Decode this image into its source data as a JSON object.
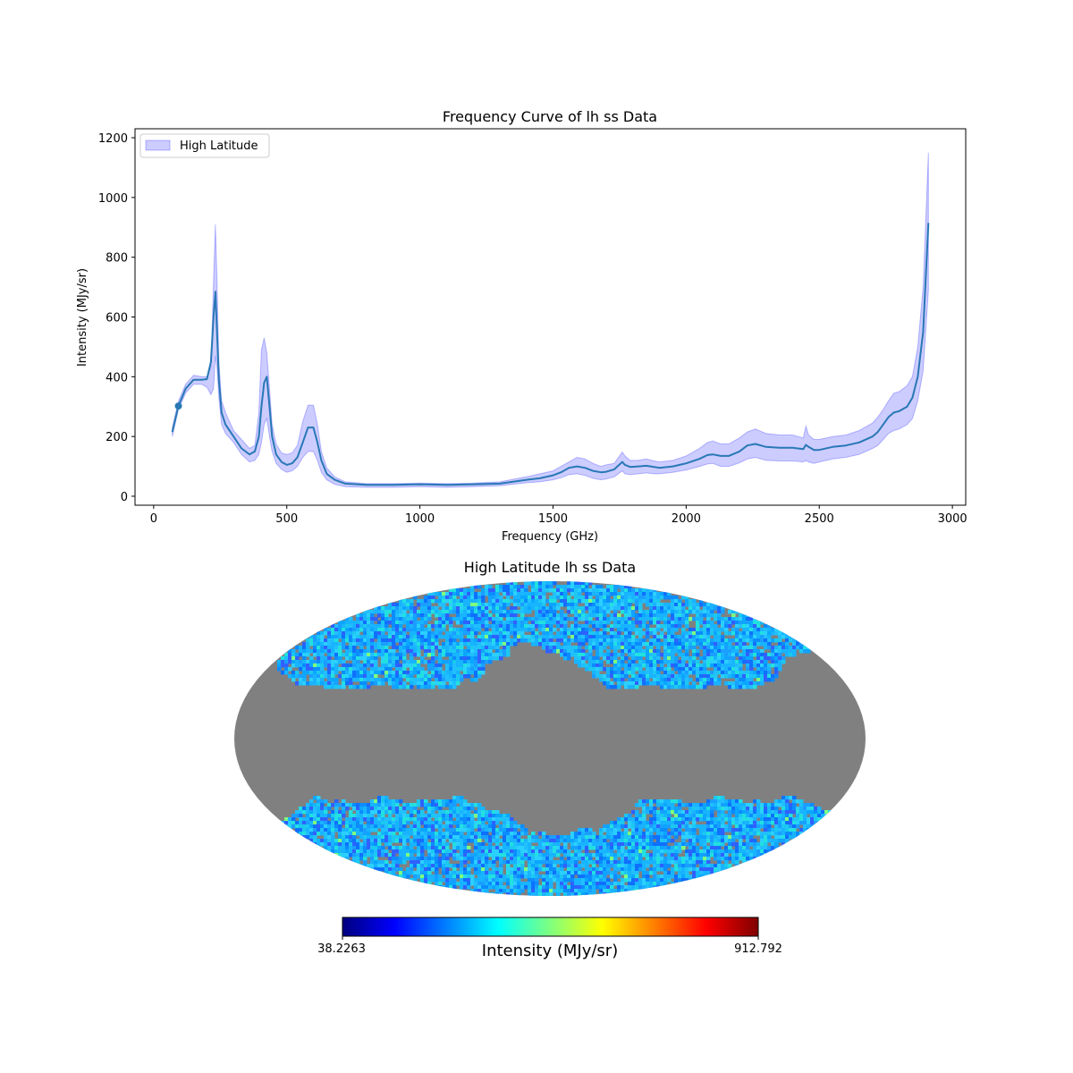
{
  "chart_data": [
    {
      "type": "line",
      "title": "Frequency Curve of lh ss Data",
      "xlabel": "Frequency (GHz)",
      "ylabel": "Intensity (MJy/sr)",
      "xlim": [
        -70,
        3050
      ],
      "ylim": [
        -30,
        1230
      ],
      "xticks": [
        0,
        500,
        1000,
        1500,
        2000,
        2500,
        3000
      ],
      "yticks": [
        0,
        200,
        400,
        600,
        800,
        1000,
        1200
      ],
      "grid": false,
      "legend": {
        "position": "top-left",
        "entries": [
          "High Latitude"
        ]
      },
      "colors": {
        "line": "#2878b5",
        "band": "#0000ff",
        "marker": "#2878b5"
      },
      "highlight_point": {
        "x": 93,
        "y": 302
      },
      "series": [
        {
          "x": [
            70,
            93,
            120,
            150,
            180,
            200,
            215,
            225,
            232,
            238,
            245,
            255,
            270,
            300,
            330,
            360,
            380,
            395,
            405,
            415,
            425,
            435,
            445,
            460,
            480,
            500,
            520,
            540,
            560,
            580,
            600,
            615,
            630,
            650,
            680,
            720,
            800,
            900,
            1000,
            1100,
            1200,
            1300,
            1400,
            1450,
            1500,
            1530,
            1560,
            1590,
            1620,
            1650,
            1680,
            1700,
            1730,
            1760,
            1770,
            1790,
            1820,
            1850,
            1880,
            1900,
            1950,
            2000,
            2050,
            2080,
            2100,
            2130,
            2160,
            2200,
            2230,
            2260,
            2300,
            2350,
            2400,
            2440,
            2450,
            2460,
            2480,
            2500,
            2550,
            2600,
            2650,
            2700,
            2720,
            2740,
            2760,
            2780,
            2800,
            2830,
            2850,
            2870,
            2890,
            2910
          ],
          "mean": [
            215,
            302,
            360,
            390,
            390,
            392,
            450,
            600,
            685,
            550,
            390,
            280,
            240,
            200,
            160,
            140,
            150,
            200,
            300,
            380,
            400,
            300,
            200,
            140,
            115,
            105,
            110,
            130,
            180,
            230,
            230,
            180,
            120,
            75,
            55,
            42,
            38,
            38,
            40,
            38,
            40,
            42,
            55,
            60,
            70,
            80,
            95,
            100,
            95,
            85,
            80,
            82,
            90,
            115,
            105,
            98,
            100,
            102,
            98,
            95,
            100,
            110,
            125,
            138,
            140,
            135,
            135,
            150,
            170,
            175,
            165,
            162,
            162,
            158,
            172,
            165,
            155,
            155,
            165,
            170,
            180,
            200,
            215,
            240,
            265,
            280,
            285,
            300,
            330,
            400,
            550,
            915
          ],
          "upper": [
            230,
            318,
            375,
            405,
            400,
            400,
            430,
            720,
            910,
            720,
            450,
            320,
            280,
            220,
            190,
            160,
            170,
            280,
            490,
            530,
            480,
            360,
            240,
            175,
            145,
            140,
            145,
            170,
            250,
            305,
            305,
            240,
            150,
            95,
            65,
            48,
            42,
            42,
            44,
            42,
            44,
            48,
            65,
            75,
            85,
            100,
            115,
            130,
            125,
            110,
            100,
            105,
            110,
            148,
            135,
            120,
            120,
            125,
            118,
            115,
            120,
            135,
            160,
            180,
            185,
            175,
            175,
            195,
            215,
            225,
            210,
            205,
            205,
            195,
            235,
            205,
            190,
            190,
            200,
            205,
            220,
            245,
            265,
            290,
            320,
            345,
            350,
            370,
            400,
            500,
            700,
            1150
          ],
          "lower": [
            200,
            290,
            345,
            375,
            375,
            365,
            340,
            360,
            470,
            430,
            330,
            240,
            210,
            180,
            140,
            115,
            120,
            140,
            180,
            240,
            260,
            200,
            150,
            110,
            90,
            80,
            85,
            100,
            130,
            150,
            150,
            120,
            80,
            55,
            40,
            32,
            30,
            30,
            32,
            30,
            32,
            35,
            45,
            48,
            55,
            62,
            72,
            75,
            70,
            60,
            55,
            58,
            65,
            85,
            75,
            72,
            75,
            78,
            75,
            75,
            80,
            88,
            100,
            108,
            110,
            100,
            100,
            112,
            125,
            130,
            120,
            118,
            118,
            115,
            120,
            115,
            110,
            115,
            125,
            130,
            140,
            160,
            170,
            190,
            210,
            220,
            225,
            240,
            260,
            320,
            420,
            690
          ]
        }
      ]
    },
    {
      "type": "heatmap",
      "title": "High Latitude lh ss Data",
      "projection": "mollweide",
      "colorbar": {
        "label": "Intensity (MJy/sr)",
        "min_label": "38.2263",
        "max_label": "912.792",
        "colormap": "jet",
        "colors": [
          "#00007f",
          "#0000ff",
          "#007fff",
          "#00ffff",
          "#7fff7f",
          "#ffff00",
          "#ff7f00",
          "#ff0000",
          "#7f0000"
        ]
      },
      "masked_color": "#808080",
      "typical_color": "#18b4ff"
    }
  ]
}
